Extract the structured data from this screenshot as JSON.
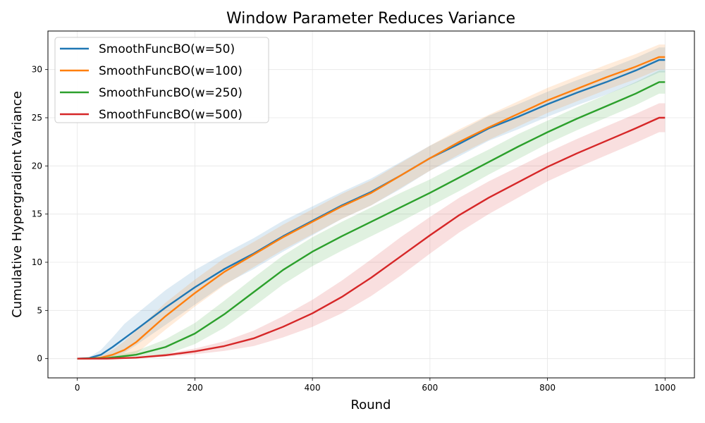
{
  "chart_data": {
    "type": "line",
    "title": "Window Parameter Reduces Variance",
    "xlabel": "Round",
    "ylabel": "Cumulative Hypergradient Variance",
    "xlim": [
      -50,
      1050
    ],
    "ylim": [
      -2,
      34
    ],
    "xticks": [
      0,
      200,
      400,
      600,
      800,
      1000
    ],
    "yticks": [
      0,
      5,
      10,
      15,
      20,
      25,
      30
    ],
    "grid": true,
    "legend_position": "upper-left",
    "series": [
      {
        "name": "SmoothFuncBO(w=50)",
        "color": "#1f77b4",
        "x": [
          0,
          20,
          40,
          60,
          80,
          100,
          150,
          200,
          250,
          300,
          350,
          400,
          450,
          500,
          550,
          600,
          650,
          700,
          750,
          800,
          850,
          900,
          950,
          990,
          1000
        ],
        "y": [
          0,
          0.05,
          0.4,
          1.2,
          2.1,
          3.0,
          5.3,
          7.4,
          9.3,
          10.9,
          12.7,
          14.3,
          15.9,
          17.3,
          19.0,
          20.8,
          22.3,
          23.9,
          25.1,
          26.4,
          27.6,
          28.7,
          29.9,
          31.0,
          31.0
        ],
        "band": [
          0,
          0.1,
          0.5,
          1.0,
          1.5,
          1.6,
          1.8,
          1.8,
          1.6,
          1.6,
          1.6,
          1.5,
          1.4,
          1.4,
          1.4,
          1.3,
          1.3,
          1.3,
          1.3,
          1.3,
          1.3,
          1.3,
          1.3,
          1.3,
          1.3
        ]
      },
      {
        "name": "SmoothFuncBO(w=100)",
        "color": "#ff7f0e",
        "x": [
          0,
          20,
          40,
          60,
          80,
          100,
          150,
          200,
          250,
          300,
          350,
          400,
          450,
          500,
          550,
          600,
          650,
          700,
          750,
          800,
          850,
          900,
          950,
          990,
          1000
        ],
        "y": [
          0,
          0.0,
          0.1,
          0.4,
          0.9,
          1.7,
          4.4,
          6.8,
          9.0,
          10.8,
          12.6,
          14.2,
          15.8,
          17.2,
          19.0,
          20.8,
          22.5,
          24.0,
          25.4,
          26.8,
          28.0,
          29.2,
          30.3,
          31.3,
          31.3
        ],
        "band": [
          0,
          0.05,
          0.2,
          0.5,
          0.9,
          1.2,
          1.4,
          1.4,
          1.4,
          1.3,
          1.3,
          1.3,
          1.3,
          1.3,
          1.3,
          1.3,
          1.3,
          1.3,
          1.3,
          1.3,
          1.3,
          1.3,
          1.3,
          1.3,
          1.3
        ]
      },
      {
        "name": "SmoothFuncBO(w=250)",
        "color": "#2ca02c",
        "x": [
          0,
          50,
          100,
          150,
          200,
          250,
          300,
          350,
          400,
          450,
          500,
          550,
          600,
          650,
          700,
          750,
          800,
          850,
          900,
          950,
          990,
          1000
        ],
        "y": [
          0,
          0.05,
          0.4,
          1.2,
          2.6,
          4.6,
          6.9,
          9.2,
          11.1,
          12.7,
          14.2,
          15.7,
          17.2,
          18.8,
          20.4,
          22.0,
          23.5,
          24.9,
          26.2,
          27.5,
          28.7,
          28.7
        ],
        "band": [
          0,
          0.1,
          0.4,
          0.8,
          1.1,
          1.4,
          1.5,
          1.5,
          1.5,
          1.5,
          1.5,
          1.5,
          1.4,
          1.4,
          1.3,
          1.3,
          1.2,
          1.2,
          1.2,
          1.2,
          1.2,
          1.2
        ]
      },
      {
        "name": "SmoothFuncBO(w=500)",
        "color": "#d62728",
        "x": [
          0,
          50,
          100,
          150,
          200,
          250,
          300,
          350,
          400,
          450,
          500,
          550,
          600,
          650,
          700,
          750,
          800,
          850,
          900,
          950,
          990,
          1000
        ],
        "y": [
          0,
          0.0,
          0.1,
          0.35,
          0.75,
          1.3,
          2.1,
          3.3,
          4.7,
          6.4,
          8.4,
          10.6,
          12.8,
          14.9,
          16.7,
          18.3,
          19.9,
          21.3,
          22.6,
          23.9,
          25.0,
          25.0
        ],
        "band": [
          0,
          0.02,
          0.05,
          0.15,
          0.3,
          0.5,
          0.8,
          1.1,
          1.4,
          1.7,
          1.9,
          2.0,
          1.9,
          1.8,
          1.7,
          1.6,
          1.5,
          1.5,
          1.5,
          1.5,
          1.5,
          1.5
        ]
      }
    ]
  }
}
